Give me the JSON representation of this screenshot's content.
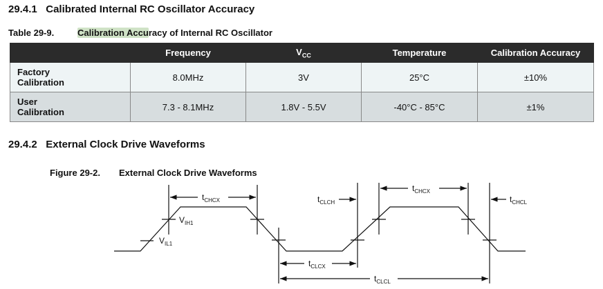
{
  "section1": {
    "number": "29.4.1",
    "title": "Calibrated Internal RC Oscillator Accuracy"
  },
  "table": {
    "caption_number": "Table 29-9.",
    "caption_highlight": "Calibration Accu",
    "caption_rest": "racy of Internal RC Oscillator",
    "columns": [
      "",
      "Frequency",
      "V",
      "Temperature",
      "Calibration Accuracy"
    ],
    "column_v_sub": "CC",
    "rows": [
      {
        "label_line1": "Factory",
        "label_line2": "Calibration",
        "frequency": "8.0MHz",
        "vcc": "3V",
        "temperature": "25°C",
        "accuracy": "±10%"
      },
      {
        "label_line1": "User",
        "label_line2": "Calibration",
        "frequency": "7.3 - 8.1MHz",
        "vcc": "1.8V - 5.5V",
        "temperature": "-40°C - 85°C",
        "accuracy": "±1%"
      }
    ]
  },
  "section2": {
    "number": "29.4.2",
    "title": "External Clock Drive Waveforms"
  },
  "figure": {
    "caption_number": "Figure 29-2.",
    "caption_title": "External Clock Drive Waveforms",
    "labels": {
      "t": "t",
      "chcx": "CHCX",
      "clch": "CLCH",
      "chcl": "CHCL",
      "clcx": "CLCX",
      "clcl": "CLCL",
      "v": "V",
      "ih1": "IH1",
      "il1": "IL1"
    }
  }
}
